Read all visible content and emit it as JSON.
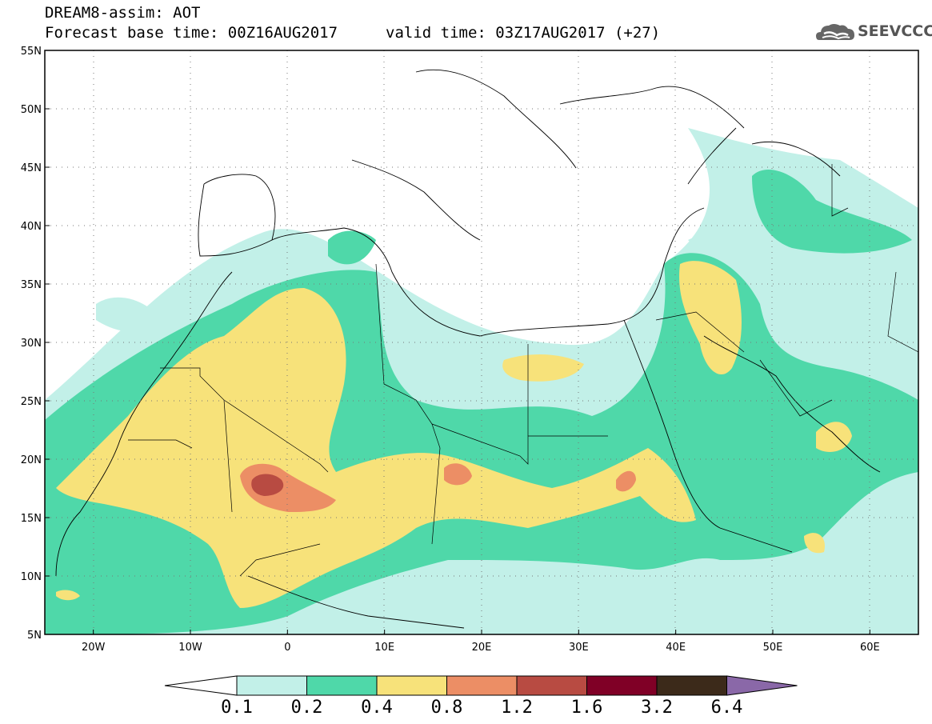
{
  "header": {
    "line1": "DREAM8-assim: AOT",
    "line2_left": "Forecast base time: 00Z16AUG2017",
    "line2_right": "valid time: 03Z17AUG2017 (+27)"
  },
  "logo": {
    "text": "SEEVCCC",
    "icon": "cloud-logo-icon"
  },
  "map": {
    "lon_range": [
      -25,
      65
    ],
    "lat_range": [
      5,
      55
    ],
    "lon_ticks": [
      "20W",
      "10W",
      "0",
      "10E",
      "20E",
      "30E",
      "40E",
      "50E",
      "60E"
    ],
    "lat_ticks": [
      "55N",
      "50N",
      "45N",
      "40N",
      "35N",
      "30N",
      "25N",
      "20N",
      "15N",
      "10N",
      "5N"
    ],
    "grid": "dotted"
  },
  "colorbar": {
    "labels": [
      "0.1",
      "0.2",
      "0.4",
      "0.8",
      "1.2",
      "1.6",
      "3.2",
      "6.4"
    ],
    "colors": [
      "#c2f0e8",
      "#4fd8a9",
      "#f7e27a",
      "#ec8e65",
      "#b84b42",
      "#800026",
      "#3c2a1a"
    ],
    "below_color": "#ffffff",
    "above_color": "#8a68a8"
  }
}
